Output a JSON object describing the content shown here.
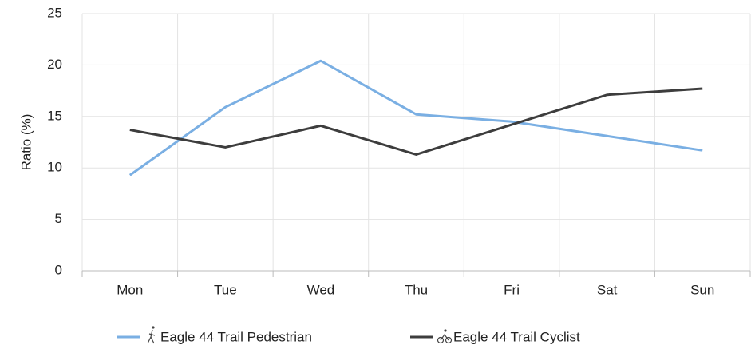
{
  "chart_data": {
    "type": "line",
    "y_label": "Ratio (%)",
    "categories": [
      "Mon",
      "Tue",
      "Wed",
      "Thu",
      "Fri",
      "Sat",
      "Sun"
    ],
    "series": [
      {
        "name": "Eagle 44 Trail Pedestrian",
        "color": "#7aafe3",
        "values": [
          9.3,
          15.9,
          20.4,
          15.2,
          14.5,
          13.1,
          11.7
        ]
      },
      {
        "name": "Eagle 44 Trail Cyclist",
        "color": "#3d3d3d",
        "values": [
          13.7,
          12.0,
          14.1,
          11.3,
          14.2,
          17.1,
          17.7
        ]
      }
    ],
    "ylim": [
      0,
      25
    ],
    "yticks": [
      0,
      5,
      10,
      15,
      20,
      25
    ],
    "grid": true,
    "legend": "bottom"
  }
}
